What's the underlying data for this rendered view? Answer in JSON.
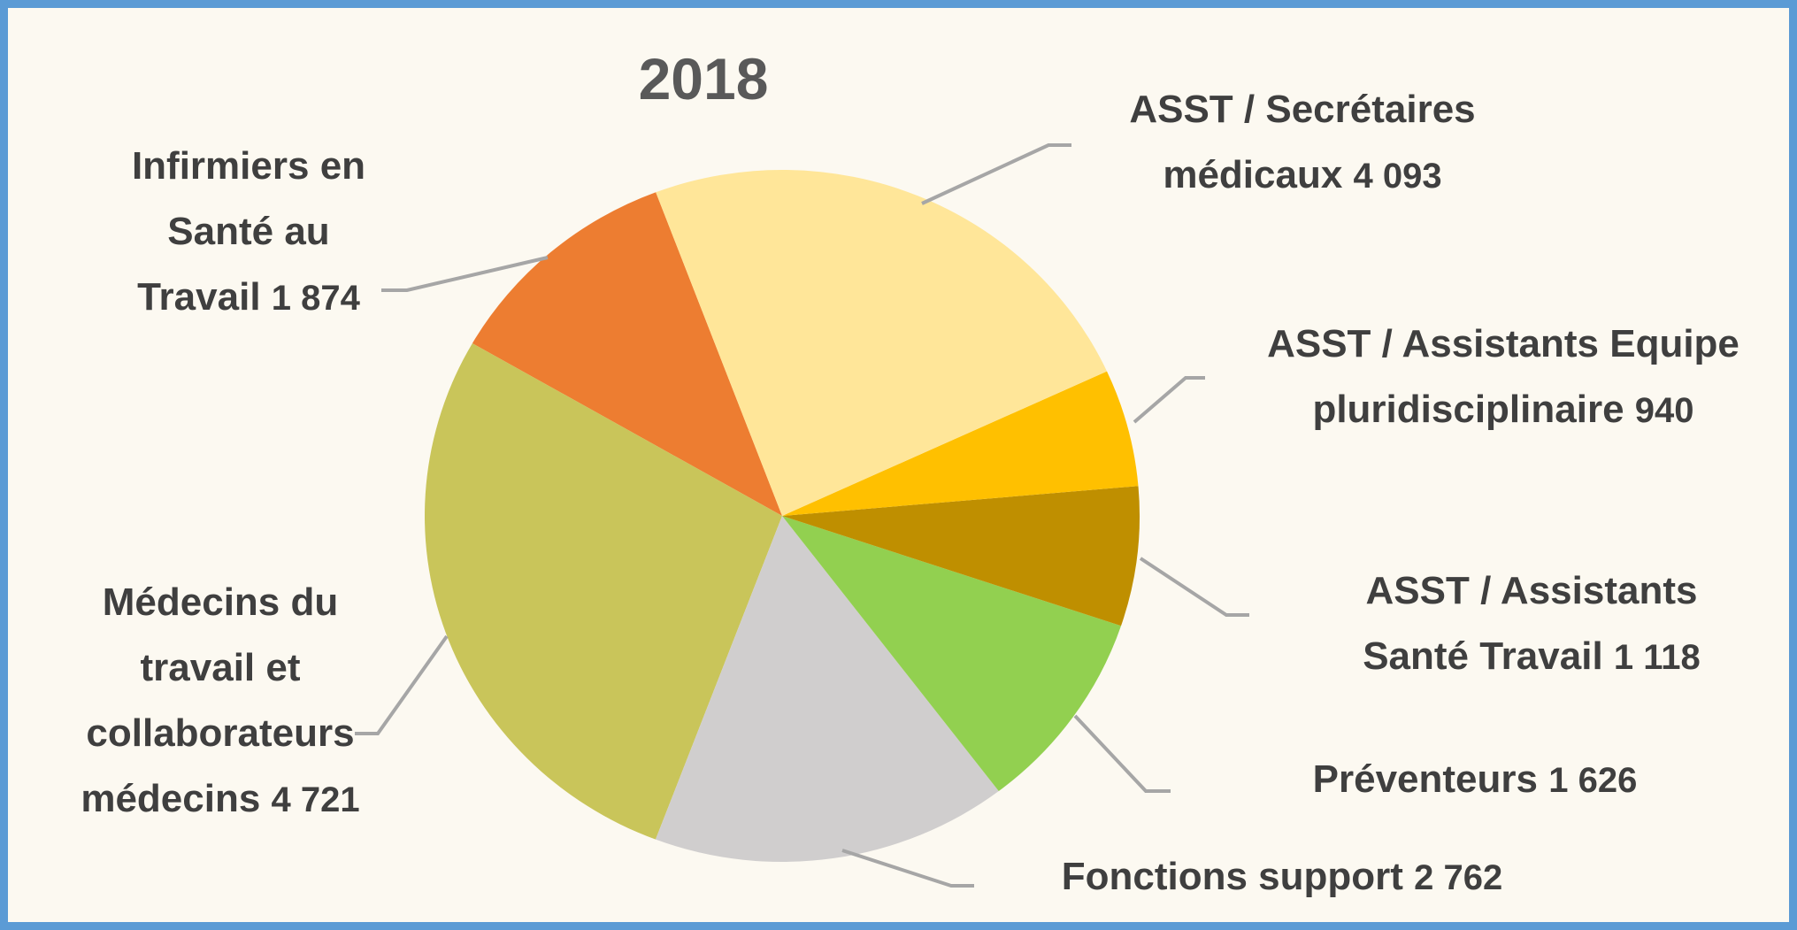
{
  "chart_data": {
    "type": "pie",
    "title": "2018",
    "categories": [
      "ASST / Secrétaires médicaux",
      "ASST / Assistants Equipe pluridisciplinaire",
      "ASST / Assistants Santé Travail",
      "Préventeurs",
      "Fonctions support",
      "Médecins du travail et collaborateurs médecins",
      "Infirmiers en Santé au Travail"
    ],
    "values": [
      4093,
      940,
      1118,
      1626,
      2762,
      4721,
      1874
    ],
    "value_labels": [
      "4 093",
      "940",
      "1 118",
      "1 626",
      "2 762",
      "4 721",
      "1 874"
    ],
    "colors": [
      "#FFE699",
      "#FFC000",
      "#BF8F00",
      "#92D050",
      "#D0CECE",
      "#C9C55A",
      "#ED7D31"
    ]
  }
}
